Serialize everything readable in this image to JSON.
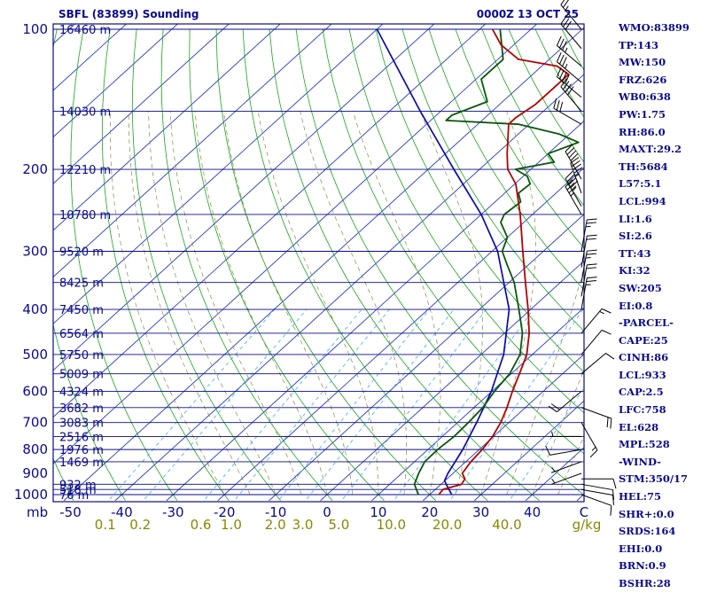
{
  "header": {
    "station": "SBFL (83899) Sounding",
    "time": "0000Z 13 OCT 25"
  },
  "indices": [
    "WMO:83899",
    "TP:143",
    "MW:150",
    "FRZ:626",
    "WB0:638",
    "PW:1.75",
    "RH:86.0",
    "MAXT:29.2",
    "TH:5684",
    "L57:5.1",
    "LCL:994",
    "LI:1.6",
    "SI:2.6",
    "TT:43",
    "KI:32",
    "SW:205",
    "EI:0.8",
    "-PARCEL-",
    "CAPE:25",
    "CINH:86",
    "LCL:933",
    "CAP:2.5",
    "LFC:758",
    "EL:628",
    "MPL:528",
    "-WIND-",
    "STM:350/17",
    "HEL:75",
    "SHR+:0.0",
    "SRDS:164",
    "EHI:0.0",
    "BRN:0.9",
    "BSHR:28"
  ],
  "colors": {
    "isobar": "#0a0a8c",
    "isotherm": "#2a3cc8",
    "dry_adiabat": "#1aa51a",
    "moist_adiabat": "#8a8a4a",
    "mixing_ratio": "#40a8ff",
    "temperature": "#b40000",
    "dewpoint": "#0a550a",
    "parcel": "#0a0aaa",
    "wind_barb": "#000000",
    "mixing_label": "#888800"
  },
  "chart_data": {
    "type": "skew-t",
    "xlabel": "C",
    "xunits_secondary": "g/kg",
    "pressure_unit_label": "mb",
    "pressure_levels": [
      100,
      200,
      300,
      400,
      500,
      600,
      700,
      800,
      900,
      1000
    ],
    "pressure_ticks_labeled": [
      "100",
      "200",
      "300",
      "400",
      "500",
      "600",
      "700",
      "800",
      "900",
      "1000"
    ],
    "temperature_ticks": [
      -50,
      -40,
      -30,
      -20,
      -10,
      0,
      10,
      20,
      30,
      40
    ],
    "temperature_tick_labels": [
      "-50",
      "-40",
      "-30",
      "-20",
      "-10",
      "0",
      "10",
      "20",
      "30",
      "40"
    ],
    "mixing_ratio_labels": [
      "0.1",
      "0.2",
      "0.6",
      "1.0",
      "2.0",
      "3.0",
      "5.0",
      "10.0",
      "20.0",
      "40.0"
    ],
    "mixing_ratio_values": [
      0.1,
      0.2,
      0.6,
      1.0,
      2.0,
      3.0,
      5.0,
      10.0,
      20.0,
      40.0
    ],
    "height_labels": [
      {
        "p": 1000,
        "label": "76 m"
      },
      {
        "p": 975,
        "label": "518 m"
      },
      {
        "p": 950,
        "label": "932 m"
      },
      {
        "p": 850,
        "label": "1469 m"
      },
      {
        "p": 800,
        "label": "1976 m"
      },
      {
        "p": 750,
        "label": "2516 m"
      },
      {
        "p": 700,
        "label": "3083 m"
      },
      {
        "p": 650,
        "label": "3682 m"
      },
      {
        "p": 600,
        "label": "4324 m"
      },
      {
        "p": 550,
        "label": "5009 m"
      },
      {
        "p": 500,
        "label": "5750 m"
      },
      {
        "p": 450,
        "label": "6564 m"
      },
      {
        "p": 400,
        "label": "7450 m"
      },
      {
        "p": 350,
        "label": "8425 m"
      },
      {
        "p": 300,
        "label": "9520 m"
      },
      {
        "p": 250,
        "label": "10780 m"
      },
      {
        "p": 200,
        "label": "12210 m"
      },
      {
        "p": 150,
        "label": "14030 m"
      },
      {
        "p": 100,
        "label": "16460 m"
      }
    ],
    "temperature_profile": [
      [
        1000,
        21.8
      ],
      [
        975,
        21.5
      ],
      [
        950,
        24.0
      ],
      [
        925,
        23.5
      ],
      [
        900,
        21.8
      ],
      [
        850,
        21.0
      ],
      [
        800,
        20.6
      ],
      [
        750,
        19.8
      ],
      [
        700,
        18.4
      ],
      [
        650,
        16.4
      ],
      [
        600,
        14.0
      ],
      [
        550,
        11.6
      ],
      [
        500,
        8.9
      ],
      [
        450,
        4.8
      ],
      [
        400,
        -0.5
      ],
      [
        350,
        -6.8
      ],
      [
        300,
        -14.0
      ],
      [
        250,
        -22.4
      ],
      [
        215,
        -29.8
      ],
      [
        200,
        -34.5
      ],
      [
        185,
        -38.0
      ],
      [
        172,
        -41.0
      ],
      [
        160,
        -44.0
      ],
      [
        155,
        -44.0
      ],
      [
        145,
        -43.0
      ],
      [
        125,
        -43.0
      ],
      [
        120,
        -47.0
      ],
      [
        116,
        -56.0
      ],
      [
        108,
        -62.5
      ],
      [
        100,
        -67.5
      ]
    ],
    "dewpoint_profile": [
      [
        1000,
        17.8
      ],
      [
        950,
        14.8
      ],
      [
        900,
        13.3
      ],
      [
        850,
        12.0
      ],
      [
        800,
        11.9
      ],
      [
        750,
        12.3
      ],
      [
        700,
        12.1
      ],
      [
        650,
        11.7
      ],
      [
        600,
        10.5
      ],
      [
        550,
        9.7
      ],
      [
        500,
        7.6
      ],
      [
        450,
        3.5
      ],
      [
        400,
        -2.3
      ],
      [
        350,
        -9.0
      ],
      [
        320,
        -14.3
      ],
      [
        300,
        -18.0
      ],
      [
        280,
        -20.0
      ],
      [
        260,
        -24.5
      ],
      [
        250,
        -25.5
      ],
      [
        235,
        -25.0
      ],
      [
        225,
        -27.3
      ],
      [
        215,
        -27.0
      ],
      [
        207,
        -29.2
      ],
      [
        200,
        -33.0
      ],
      [
        193,
        -27.0
      ],
      [
        185,
        -30.0
      ],
      [
        175,
        -26.5
      ],
      [
        168,
        -32.0
      ],
      [
        160,
        -42.0
      ],
      [
        157,
        -57.0
      ],
      [
        153,
        -57.0
      ],
      [
        143,
        -53.0
      ],
      [
        128,
        -59.0
      ],
      [
        116,
        -59.0
      ],
      [
        100,
        -66.0
      ]
    ],
    "parcel_profile": [
      [
        1000,
        24.3
      ],
      [
        950,
        21.0
      ],
      [
        933,
        19.9
      ],
      [
        900,
        19.0
      ],
      [
        800,
        16.8
      ],
      [
        700,
        13.7
      ],
      [
        600,
        9.9
      ],
      [
        500,
        4.4
      ],
      [
        400,
        -4.2
      ],
      [
        300,
        -18.9
      ],
      [
        250,
        -30.0
      ],
      [
        200,
        -45.0
      ],
      [
        150,
        -64.0
      ],
      [
        100,
        -90.0
      ]
    ],
    "wind_barbs": [
      {
        "p": 1000,
        "dir": 110,
        "spd": 10
      },
      {
        "p": 975,
        "dir": 100,
        "spd": 10
      },
      {
        "p": 950,
        "dir": 100,
        "spd": 10
      },
      {
        "p": 925,
        "dir": 90,
        "spd": 10
      },
      {
        "p": 900,
        "dir": 250,
        "spd": 5
      },
      {
        "p": 850,
        "dir": 250,
        "spd": 5
      },
      {
        "p": 800,
        "dir": 260,
        "spd": 10
      },
      {
        "p": 750,
        "dir": 270,
        "spd": 5
      },
      {
        "p": 700,
        "dir": 150,
        "spd": 15
      },
      {
        "p": 650,
        "dir": 110,
        "spd": 20
      },
      {
        "p": 600,
        "dir": 230,
        "spd": 20
      },
      {
        "p": 550,
        "dir": 50,
        "spd": 10
      },
      {
        "p": 500,
        "dir": 40,
        "spd": 10
      },
      {
        "p": 450,
        "dir": 40,
        "spd": 15
      },
      {
        "p": 400,
        "dir": 10,
        "spd": 25
      },
      {
        "p": 375,
        "dir": 10,
        "spd": 20
      },
      {
        "p": 350,
        "dir": 10,
        "spd": 25
      },
      {
        "p": 325,
        "dir": 10,
        "spd": 20
      },
      {
        "p": 300,
        "dir": 10,
        "spd": 25
      },
      {
        "p": 250,
        "dir": 330,
        "spd": 35
      },
      {
        "p": 240,
        "dir": 330,
        "spd": 45
      },
      {
        "p": 225,
        "dir": 340,
        "spd": 45
      },
      {
        "p": 210,
        "dir": 330,
        "spd": 40
      },
      {
        "p": 160,
        "dir": 300,
        "spd": 30
      },
      {
        "p": 150,
        "dir": 320,
        "spd": 40
      },
      {
        "p": 140,
        "dir": 310,
        "spd": 40
      },
      {
        "p": 130,
        "dir": 310,
        "spd": 35
      },
      {
        "p": 120,
        "dir": 310,
        "spd": 35
      },
      {
        "p": 110,
        "dir": 320,
        "spd": 30
      },
      {
        "p": 100,
        "dir": 320,
        "spd": 25
      }
    ],
    "grid": true
  }
}
